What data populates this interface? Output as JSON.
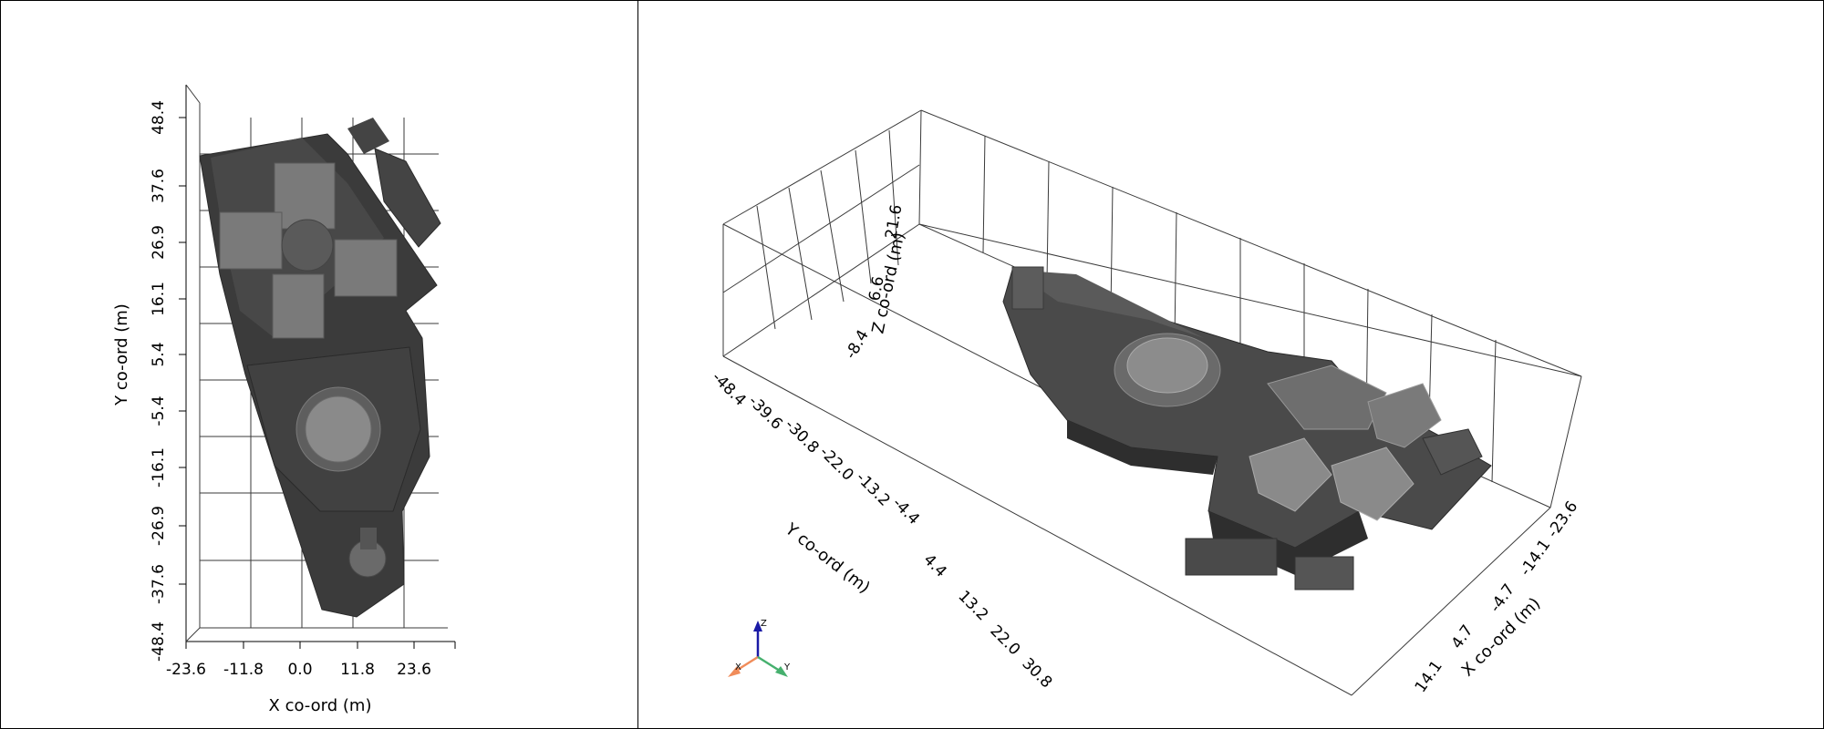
{
  "views": {
    "left": {
      "x_axis": {
        "title": "X co-ord (m)",
        "ticks": [
          "-23.6",
          "-11.8",
          "0.0",
          "11.8",
          "23.6"
        ]
      },
      "y_axis": {
        "title": "Y co-ord (m)",
        "ticks": [
          "48.4",
          "37.6",
          "26.9",
          "16.1",
          "5.4",
          "-5.4",
          "-16.1",
          "-26.9",
          "-37.6",
          "-48.4"
        ]
      }
    },
    "right": {
      "x_axis": {
        "title": "X co-ord (m)",
        "ticks": [
          "-23.6",
          "-14.1",
          "-4.7",
          "4.7",
          "14.1"
        ]
      },
      "y_axis": {
        "title": "Y co-ord (m)",
        "ticks": [
          "-48.4",
          "-39.6",
          "-30.8",
          "-22.0",
          "-13.2",
          "-4.4",
          "4.4",
          "13.2",
          "22.0",
          "30.8"
        ]
      },
      "z_axis": {
        "title": "Z co-ord (m)",
        "ticks": [
          "21.6",
          "6.6",
          "-8.4"
        ]
      },
      "orientation_triad": {
        "x": "X",
        "y": "Y",
        "z": "Z"
      }
    }
  },
  "colors": {
    "model_dark": "#3b3b3b",
    "model_mid": "#4a4a4a",
    "model_light": "#8a8a8a",
    "triad_x": "#f08c5a",
    "triad_y": "#46b06e",
    "triad_z": "#1a1aa6"
  }
}
